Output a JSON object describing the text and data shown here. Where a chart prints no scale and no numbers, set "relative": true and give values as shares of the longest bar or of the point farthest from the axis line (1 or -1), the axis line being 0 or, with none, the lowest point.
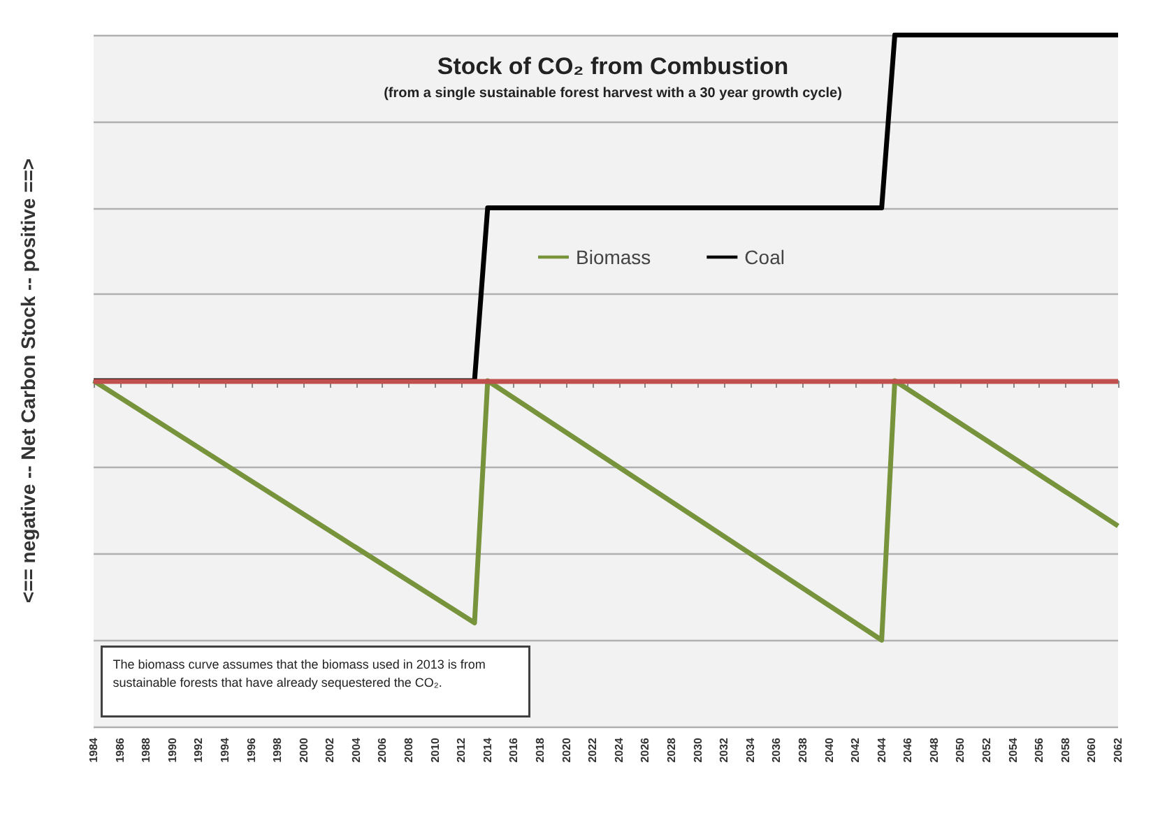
{
  "chart_data": {
    "type": "line",
    "title": "Stock of CO₂ from Combustion",
    "subtitle": "(from a single sustainable forest harvest with a 30 year growth cycle)",
    "ylabel": "<== negative -- Net Carbon Stock -- positive ==>",
    "annotations": [
      "The biomass curve assumes that the biomass used in 2013 is from sustainable forests that have already sequestered the CO₂."
    ],
    "relative": true,
    "grid": "y",
    "legend": "top",
    "marker": "none",
    "line_style": "solid",
    "xlim": [
      1984,
      2062
    ],
    "xticks": [
      1984,
      1986,
      1988,
      1990,
      1992,
      1994,
      1996,
      1998,
      2000,
      2002,
      2004,
      2006,
      2008,
      2010,
      2012,
      2014,
      2016,
      2018,
      2020,
      2022,
      2024,
      2026,
      2028,
      2030,
      2032,
      2034,
      2036,
      2038,
      2040,
      2042,
      2044,
      2046,
      2048,
      2050,
      2052,
      2054,
      2056,
      2058,
      2060,
      2062
    ],
    "series": [
      {
        "name": "Biomass",
        "color": "#77933c",
        "x": [
          1984,
          2013,
          2014,
          2044,
          2045,
          2062
        ],
        "values": [
          0,
          -0.7,
          0,
          -0.75,
          0,
          -0.42
        ]
      },
      {
        "name": "Coal",
        "color": "#000000",
        "x": [
          1984,
          2013,
          2014,
          2044,
          2045,
          2062
        ],
        "values": [
          0,
          0,
          0.5,
          0.5,
          1,
          1
        ]
      }
    ],
    "ref_lines": [
      {
        "axis": "y",
        "value": 0,
        "color": "#c0504d"
      }
    ]
  }
}
